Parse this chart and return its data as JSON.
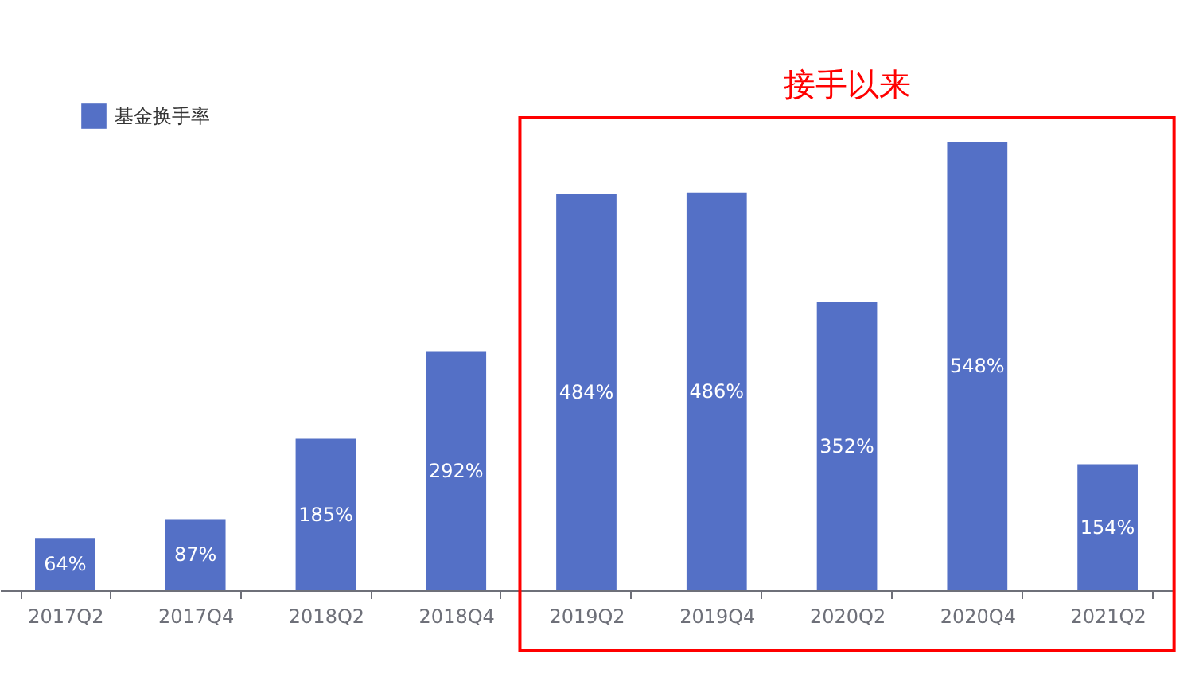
{
  "chart_data": {
    "type": "bar",
    "categories": [
      "2017Q2",
      "2017Q4",
      "2018Q2",
      "2018Q4",
      "2019Q2",
      "2019Q4",
      "2020Q2",
      "2020Q4",
      "2021Q2"
    ],
    "series": [
      {
        "name": "基金换手率",
        "color": "#5470c6",
        "values": [
          64,
          87,
          185,
          292,
          484,
          486,
          352,
          548,
          154
        ],
        "value_labels": [
          "64%",
          "87%",
          "185%",
          "292%",
          "484%",
          "486%",
          "352%",
          "548%",
          "154%"
        ]
      }
    ],
    "legend": "top left",
    "annotations": [
      "接手以来"
    ]
  }
}
